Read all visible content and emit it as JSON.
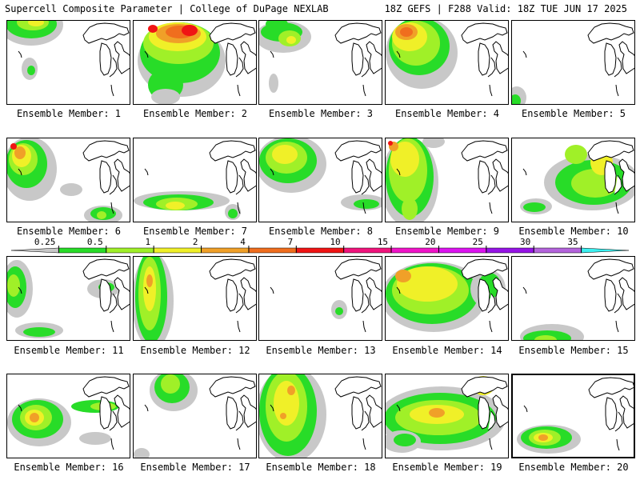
{
  "header": {
    "title": "Supercell Composite Parameter | College of DuPage NEXLAB",
    "run_info": "18Z GEFS | F288 Valid: 18Z TUE JUN 17 2025"
  },
  "panel_label_prefix": "Ensemble Member:",
  "members": [
    {
      "number": "1",
      "label": "Ensemble Member: 1"
    },
    {
      "number": "2",
      "label": "Ensemble Member: 2"
    },
    {
      "number": "3",
      "label": "Ensemble Member: 3"
    },
    {
      "number": "4",
      "label": "Ensemble Member: 4"
    },
    {
      "number": "5",
      "label": "Ensemble Member: 5"
    },
    {
      "number": "6",
      "label": "Ensemble Member: 6"
    },
    {
      "number": "7",
      "label": "Ensemble Member: 7"
    },
    {
      "number": "8",
      "label": "Ensemble Member: 8"
    },
    {
      "number": "9",
      "label": "Ensemble Member: 9"
    },
    {
      "number": "10",
      "label": "Ensemble Member: 10"
    },
    {
      "number": "11",
      "label": "Ensemble Member: 11"
    },
    {
      "number": "12",
      "label": "Ensemble Member: 12"
    },
    {
      "number": "13",
      "label": "Ensemble Member: 13"
    },
    {
      "number": "14",
      "label": "Ensemble Member: 14"
    },
    {
      "number": "15",
      "label": "Ensemble Member: 15"
    },
    {
      "number": "16",
      "label": "Ensemble Member: 16"
    },
    {
      "number": "17",
      "label": "Ensemble Member: 17"
    },
    {
      "number": "18",
      "label": "Ensemble Member: 18"
    },
    {
      "number": "19",
      "label": "Ensemble Member: 19"
    },
    {
      "number": "20",
      "label": "Ensemble Member: 20"
    }
  ],
  "selected_member": "20",
  "colors": {
    "line": "#000000",
    "background": "#ffffff",
    "levels": [
      "#c8c8c8",
      "#28dc28",
      "#a0f028",
      "#f0f028",
      "#f0a028",
      "#f06e1e",
      "#f01414",
      "#f0147c",
      "#f014c8",
      "#dc14f0",
      "#9614e6",
      "#b464dc",
      "#3cf0f0"
    ]
  },
  "chart_data": {
    "type": "heatmap",
    "title": "Supercell Composite Parameter",
    "legend_placement": "horizontal colorbar between rows 2 and 3",
    "colorbar": {
      "ticks": [
        "0.25",
        "0.5",
        "1",
        "2",
        "4",
        "7",
        "10",
        "15",
        "20",
        "25",
        "30",
        "35"
      ],
      "colors": [
        "#c8c8c8",
        "#28dc28",
        "#a0f028",
        "#f0f028",
        "#f0a028",
        "#f06e1e",
        "#f01414",
        "#f0147c",
        "#f014c8",
        "#dc14f0",
        "#9614e6",
        "#b464dc",
        "#3cf0f0"
      ]
    }
  }
}
